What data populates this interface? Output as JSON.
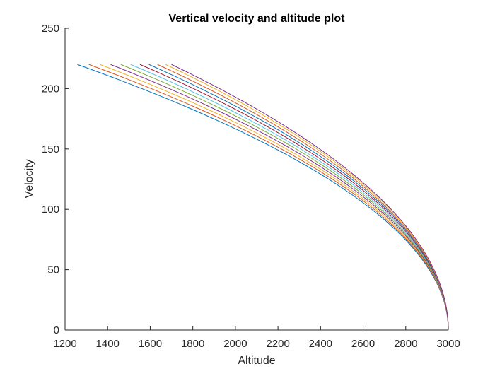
{
  "chart_data": {
    "type": "line",
    "title": "Vertical velocity and altitude plot",
    "xlabel": "Altitude",
    "ylabel": "Velocity",
    "xlim": [
      1200,
      3000
    ],
    "ylim": [
      0,
      250
    ],
    "xticks": [
      1200,
      1400,
      1600,
      1800,
      2000,
      2200,
      2400,
      2600,
      2800,
      3000
    ],
    "yticks": [
      0,
      50,
      100,
      150,
      200,
      250
    ],
    "grid": false,
    "series": [
      {
        "color": "#0072BD",
        "start_altitude": 3000,
        "end_altitude": 1258,
        "end_velocity": 220
      },
      {
        "color": "#D95319",
        "start_altitude": 3000,
        "end_altitude": 1312,
        "end_velocity": 220
      },
      {
        "color": "#EDB120",
        "start_altitude": 3000,
        "end_altitude": 1364,
        "end_velocity": 220
      },
      {
        "color": "#7E2F8E",
        "start_altitude": 3000,
        "end_altitude": 1414,
        "end_velocity": 220
      },
      {
        "color": "#77AC30",
        "start_altitude": 3000,
        "end_altitude": 1462,
        "end_velocity": 220
      },
      {
        "color": "#4DBEEE",
        "start_altitude": 3000,
        "end_altitude": 1508,
        "end_velocity": 220
      },
      {
        "color": "#A2142F",
        "start_altitude": 3000,
        "end_altitude": 1552,
        "end_velocity": 220
      },
      {
        "color": "#0072BD",
        "start_altitude": 3000,
        "end_altitude": 1594,
        "end_velocity": 220
      },
      {
        "color": "#D95319",
        "start_altitude": 3000,
        "end_altitude": 1634,
        "end_velocity": 220
      },
      {
        "color": "#EDB120",
        "start_altitude": 3000,
        "end_altitude": 1672,
        "end_velocity": 220
      },
      {
        "color": "#7E2F8E",
        "start_altitude": 3000,
        "end_altitude": 1700,
        "end_velocity": 220
      }
    ]
  }
}
